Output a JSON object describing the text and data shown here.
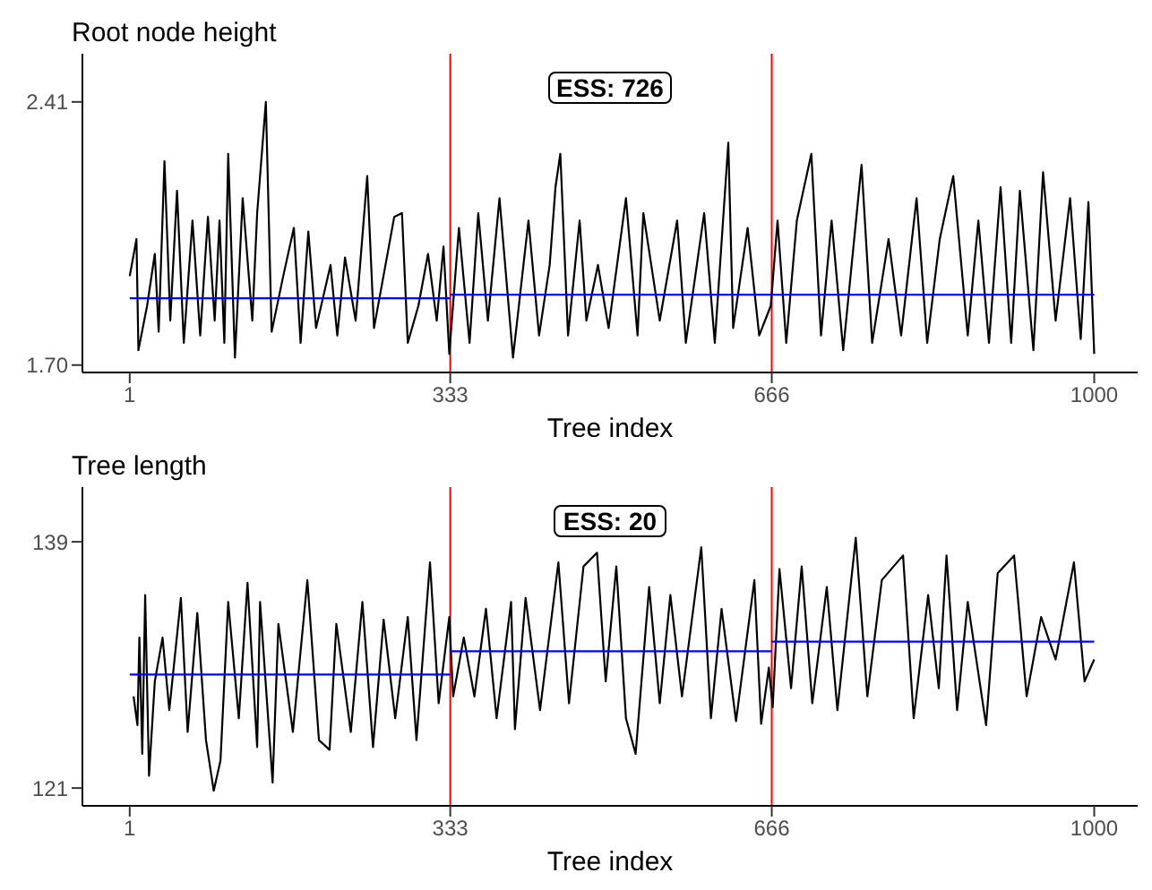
{
  "chart_data": [
    {
      "type": "line",
      "title": "Root node height",
      "xlabel": "Tree index",
      "annotations": [
        "ESS: 726"
      ],
      "xlim": [
        -48,
        1045
      ],
      "xticks": [
        1,
        333,
        666,
        1000
      ],
      "ylim": [
        1.68,
        2.54
      ],
      "yticks": [
        {
          "value": 1.7,
          "label": "1.70"
        },
        2.41
      ],
      "legend": false,
      "marker": "none",
      "line_style": "solid",
      "ref_lines": [
        {
          "axis": "x",
          "value": 333,
          "color": "#ff0000"
        },
        {
          "axis": "x",
          "value": 666,
          "color": "#ff0000"
        }
      ],
      "series": [
        {
          "color": "#000000",
          "x": [
            1,
            8,
            10,
            19,
            27,
            31,
            37,
            43,
            50,
            57,
            66,
            74,
            82,
            89,
            94,
            99,
            103,
            110,
            118,
            128,
            133,
            142,
            148,
            160,
            171,
            178,
            186,
            194,
            209,
            216,
            224,
            235,
            247,
            254,
            275,
            283,
            289,
            300,
            310,
            319,
            326,
            332,
            342,
            353,
            362,
            372,
            384,
            398,
            414,
            425,
            436,
            442,
            447,
            455,
            467,
            474,
            486,
            497,
            515,
            527,
            533,
            550,
            568,
            577,
            596,
            607,
            621,
            626,
            641,
            653,
            665,
            672,
            681,
            692,
            707,
            717,
            728,
            740,
            759,
            770,
            787,
            800,
            816,
            827,
            840,
            854,
            869,
            880,
            891,
            903,
            914,
            923,
            937,
            947,
            960,
            975,
            986,
            994,
            1000
          ],
          "values": [
            1.94,
            2.04,
            1.74,
            1.86,
            2.0,
            1.79,
            2.25,
            1.82,
            2.17,
            1.76,
            2.09,
            1.78,
            2.1,
            1.82,
            2.09,
            1.76,
            2.27,
            1.72,
            2.15,
            1.82,
            2.11,
            2.41,
            1.79,
            1.94,
            2.07,
            1.76,
            2.06,
            1.8,
            1.97,
            1.78,
            1.99,
            1.82,
            2.21,
            1.8,
            2.1,
            2.11,
            1.76,
            1.86,
            2.0,
            1.82,
            2.02,
            1.73,
            2.07,
            1.76,
            2.11,
            1.82,
            2.15,
            1.72,
            2.09,
            1.78,
            1.97,
            2.18,
            2.27,
            1.78,
            2.09,
            1.82,
            1.97,
            1.8,
            2.15,
            1.78,
            2.11,
            1.82,
            2.09,
            1.76,
            2.11,
            1.76,
            2.3,
            1.8,
            2.07,
            1.78,
            1.86,
            2.09,
            1.76,
            2.09,
            2.27,
            1.78,
            2.09,
            1.74,
            2.24,
            1.76,
            2.04,
            1.78,
            2.15,
            1.76,
            2.04,
            2.21,
            1.78,
            2.09,
            1.76,
            2.18,
            1.76,
            2.17,
            1.74,
            2.22,
            1.82,
            2.15,
            1.77,
            2.14,
            1.73
          ]
        },
        {
          "type": "line",
          "color": "#0000ff",
          "x": [
            1,
            333
          ],
          "values": [
            1.88,
            1.88
          ]
        },
        {
          "type": "line",
          "color": "#0000ff",
          "x": [
            333,
            1000
          ],
          "values": [
            1.89,
            1.89
          ]
        }
      ]
    },
    {
      "type": "line",
      "title": "Tree length",
      "xlabel": "Tree index",
      "annotations": [
        "ESS: 20"
      ],
      "xlim": [
        -48,
        1045
      ],
      "xticks": [
        1,
        333,
        666,
        1000
      ],
      "ylim": [
        119.7,
        143
      ],
      "yticks": [
        121,
        139
      ],
      "legend": false,
      "marker": "none",
      "line_style": "solid",
      "ref_lines": [
        {
          "axis": "x",
          "value": 333,
          "color": "#ff0000"
        },
        {
          "axis": "x",
          "value": 666,
          "color": "#ff0000"
        }
      ],
      "series": [
        {
          "color": "#000000",
          "x": [
            5,
            9,
            11,
            14,
            17,
            21,
            27,
            35,
            42,
            54,
            61,
            71,
            80,
            88,
            95,
            103,
            114,
            123,
            133,
            136,
            149,
            155,
            170,
            185,
            197,
            208,
            215,
            230,
            242,
            253,
            264,
            276,
            289,
            298,
            312,
            321,
            332,
            336,
            347,
            358,
            370,
            381,
            396,
            400,
            411,
            426,
            445,
            456,
            471,
            485,
            494,
            505,
            515,
            525,
            539,
            550,
            561,
            573,
            593,
            603,
            614,
            629,
            648,
            655,
            663,
            667,
            674,
            686,
            697,
            708,
            723,
            734,
            753,
            765,
            780,
            802,
            813,
            828,
            839,
            847,
            858,
            869,
            888,
            900,
            917,
            930,
            945,
            960,
            979,
            990,
            1000
          ],
          "values": [
            127.7,
            125.6,
            132.0,
            123.5,
            135.1,
            121.9,
            128.8,
            132.0,
            126.7,
            134.9,
            125.1,
            133.8,
            124.5,
            120.8,
            123.0,
            134.6,
            126.1,
            136.0,
            124.0,
            134.6,
            121.4,
            133.0,
            125.1,
            136.2,
            124.5,
            123.8,
            133.0,
            125.1,
            134.6,
            124.0,
            133.3,
            126.1,
            133.5,
            124.5,
            137.5,
            127.2,
            133.5,
            127.7,
            132.0,
            127.7,
            134.1,
            126.1,
            134.6,
            125.3,
            134.9,
            126.7,
            137.5,
            127.2,
            137.2,
            138.2,
            128.8,
            137.2,
            126.1,
            123.5,
            135.7,
            127.2,
            135.1,
            127.7,
            138.6,
            126.1,
            134.1,
            125.9,
            136.2,
            125.7,
            129.8,
            126.9,
            137.0,
            128.3,
            137.2,
            127.2,
            135.7,
            126.7,
            139.3,
            127.7,
            136.2,
            138.0,
            126.1,
            135.1,
            128.3,
            138.0,
            126.7,
            134.6,
            125.6,
            136.7,
            138.0,
            127.7,
            133.5,
            130.4,
            137.5,
            128.8,
            130.4
          ]
        },
        {
          "type": "line",
          "color": "#0000ff",
          "x": [
            1,
            333
          ],
          "values": [
            129.3,
            129.3
          ]
        },
        {
          "type": "line",
          "color": "#0000ff",
          "x": [
            333,
            666
          ],
          "values": [
            131.0,
            131.0
          ]
        },
        {
          "type": "line",
          "color": "#0000ff",
          "x": [
            666,
            1000
          ],
          "values": [
            131.7,
            131.7
          ]
        }
      ]
    }
  ]
}
